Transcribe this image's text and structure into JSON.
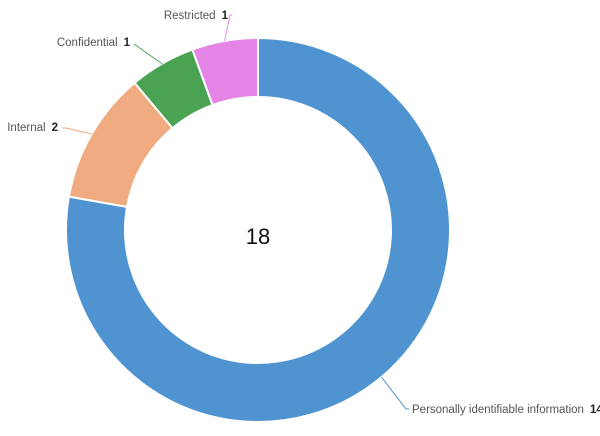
{
  "chart_data": {
    "type": "pie",
    "variant": "donut",
    "total": "18",
    "slices": [
      {
        "name": "Personally identifiable information",
        "value": 14,
        "color": "#4f94d1"
      },
      {
        "name": "Internal",
        "value": 2,
        "color": "#f0ac80"
      },
      {
        "name": "Confidential",
        "value": 1,
        "color": "#4aa352"
      },
      {
        "name": "Restricted",
        "value": 1,
        "color": "#e485e6"
      }
    ],
    "legend": "none",
    "labels": "outside-with-leader-lines"
  }
}
